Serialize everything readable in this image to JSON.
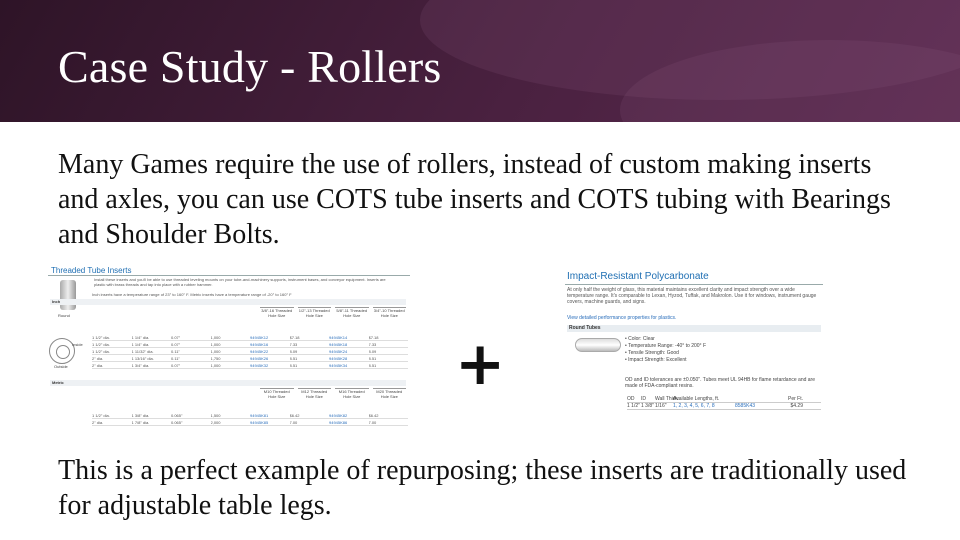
{
  "slide": {
    "title": "Case Study - Rollers",
    "paragraph1": "Many Games require the use of rollers, instead of custom making inserts and axles, you can use COTS tube inserts and COTS tubing with Bearings and Shoulder Bolts.",
    "paragraph2": "This is a perfect example of repurposing; these inserts are traditionally used for adjustable table legs.",
    "plus_symbol": "+"
  },
  "left_screenshot": {
    "title": "Threaded Tube Inserts",
    "note": "Install these inserts and you'll be able to use threaded leveling mounts on your tube-and-machinery supports, instrument bases, and conveyor equipment. Inserts are plastic with brass threads and tap into place with a rubber hammer.",
    "inch_note": "Inch inserts have a temperature range of 23° to 160° F. Metric inserts have a temperature range of -20° to 160° F",
    "image_label": "Round",
    "inside_label": "Inside",
    "outside_label": "Outside",
    "section_inch": "Inch",
    "section_metric": "Metric",
    "inch_columns": [
      "3/8\"-16 Threaded Hole Size",
      "1/2\"-13 Threaded Hole Size",
      "5/8\"-11 Threaded Hole Size",
      "3/4\"-10 Threaded Hole Size"
    ],
    "metric_columns": [
      "M10 Threaded Hole Size",
      "M12 Threaded Hole Size",
      "M16 Threaded Hole Size",
      "M20 Threaded Hole Size"
    ],
    "inch_rows": [
      [
        "1 1/2\" dia.",
        "1 1/4\" dia.",
        "0.07\"",
        "1,000",
        "94945K12",
        "$7.18",
        "94945K14",
        "$7.18"
      ],
      [
        "1 1/2\" dia.",
        "1 1/4\" dia.",
        "0.07\"",
        "1,000",
        "94945K16",
        "7.33",
        "94945K18",
        "7.33"
      ],
      [
        "1 1/2\" dia.",
        "1 11/32\" dia.",
        "0.11\"",
        "1,000",
        "94945K22",
        "8.09",
        "94945K24",
        "8.09"
      ],
      [
        "2\" dia.",
        "1 13/16\" dia.",
        "0.11\"",
        "1,750",
        "94945K26",
        "8.51",
        "94945K28",
        "8.51"
      ],
      [
        "2\" dia.",
        "1 3/4\" dia.",
        "0.07\"",
        "1,000",
        "94945K32",
        "8.51",
        "94945K34",
        "8.51"
      ]
    ],
    "metric_rows": [
      [
        "1 1/2\" dia.",
        "1 3/8\" dia.",
        "0.065\"",
        "1,500",
        "94945K81",
        "$6.42",
        "94945K82",
        "$6.42"
      ],
      [
        "2\" dia.",
        "1 7/8\" dia.",
        "0.065\"",
        "2,000",
        "94945K85",
        "7.00",
        "94945K86",
        "7.00"
      ]
    ]
  },
  "right_screenshot": {
    "title": "Impact-Resistant Polycarbonate",
    "description": "At only half the weight of glass, this material maintains excellent clarity and impact strength over a wide temperature range. It's comparable to Lexan, Hyzod, Tuffak, and Makrolon. Use it for windows, instrument gauge covers, machine guards, and signs.",
    "link": "View detailed performance properties for plastics.",
    "section": "Round Tubes",
    "specs": [
      "Color: Clear",
      "Temperature Range: -40° to 200° F",
      "Tensile Strength: Good",
      "Impact Strength: Excellent"
    ],
    "tolerance_note": "OD and ID tolerances are ±0.050\". Tubes meet UL 94HB for flame retardance and are made of FDA-compliant resins.",
    "table_headers": [
      "OD",
      "ID",
      "Wall Thick.",
      "Available Lengths, ft.",
      "",
      "Per Ft."
    ],
    "table_row": [
      "1 1/2\"",
      "1 3/8\"",
      "1/16\"",
      "1, 2, 3, 4, 5, 6, 7, 8",
      "8585K43",
      "$4.29"
    ]
  },
  "colors": {
    "title_bar": "#3d1a35",
    "title_text": "#ffffff",
    "body_text": "#111111",
    "link_blue": "#2a6ebb"
  }
}
